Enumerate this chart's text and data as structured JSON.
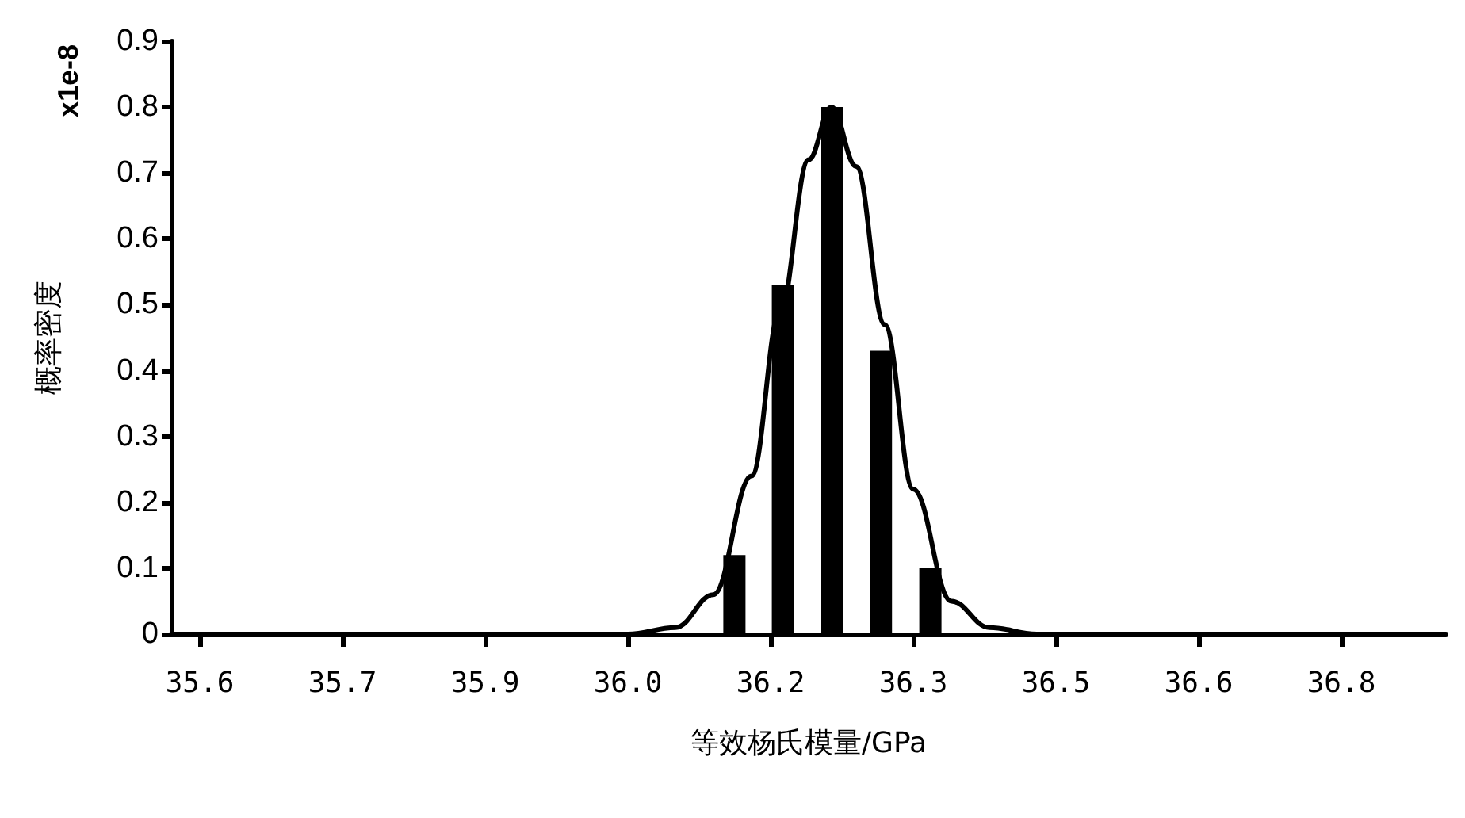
{
  "chart_data": {
    "type": "bar",
    "xlabel": "等效杨氏模量/GPa",
    "ylabel": "概率密度",
    "annotations": [
      "x1e-8"
    ],
    "series": [
      {
        "color": "#000000",
        "x": [
          36.162,
          36.213,
          36.265,
          36.316,
          36.368
        ],
        "values": [
          0.12,
          0.53,
          0.8,
          0.43,
          0.1
        ]
      },
      {
        "type": "line",
        "color": "#000000",
        "x": [
          35.57,
          36.0,
          36.05,
          36.1,
          36.14,
          36.18,
          36.21,
          36.24,
          36.264,
          36.29,
          36.32,
          36.35,
          36.39,
          36.43,
          36.48,
          36.91
        ],
        "values": [
          0,
          0,
          0,
          0.01,
          0.06,
          0.24,
          0.49,
          0.72,
          0.8,
          0.71,
          0.47,
          0.22,
          0.05,
          0.01,
          0,
          0
        ]
      }
    ],
    "xlim": [
      35.57,
      36.91
    ],
    "xticks": [
      {
        "value": 35.6,
        "label": "35.6"
      },
      {
        "value": 35.75,
        "label": "35.7"
      },
      {
        "value": 35.9,
        "label": "35.9"
      },
      {
        "value": 36.05,
        "label": "36.0"
      },
      {
        "value": 36.2,
        "label": "36.2"
      },
      {
        "value": 36.35,
        "label": "36.3"
      },
      {
        "value": 36.5,
        "label": "36.5"
      },
      {
        "value": 36.65,
        "label": "36.6"
      },
      {
        "value": 36.8,
        "label": "36.8"
      }
    ],
    "ylim": [
      0,
      0.9
    ],
    "yticks": [
      0,
      0.1,
      0.2,
      0.3,
      0.4,
      0.5,
      0.6,
      0.7,
      0.8,
      0.9
    ],
    "grid": false,
    "marker": "none",
    "line_style": "solid"
  }
}
